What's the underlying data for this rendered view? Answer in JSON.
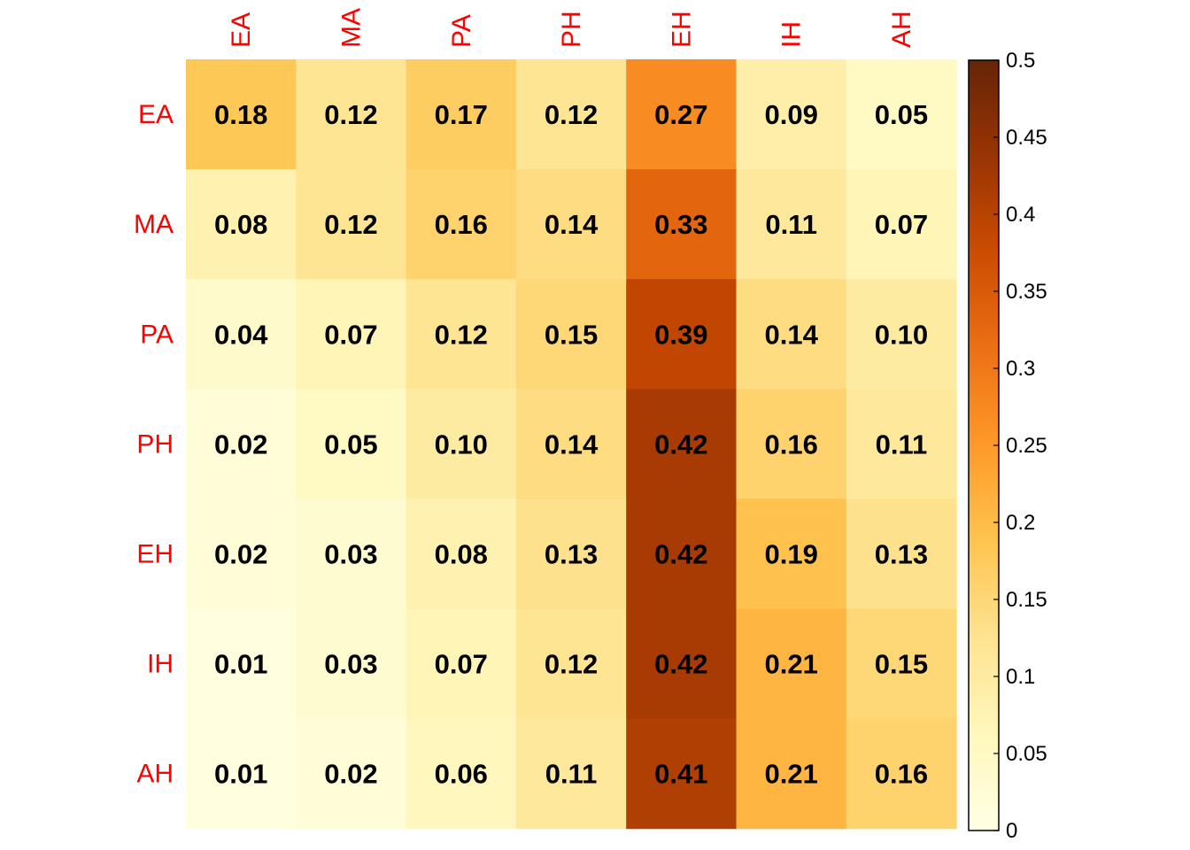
{
  "chart_data": {
    "type": "heatmap",
    "row_labels": [
      "EA",
      "MA",
      "PA",
      "PH",
      "EH",
      "IH",
      "AH"
    ],
    "col_labels": [
      "EA",
      "MA",
      "PA",
      "PH",
      "EH",
      "IH",
      "AH"
    ],
    "values": [
      [
        0.18,
        0.12,
        0.17,
        0.12,
        0.27,
        0.09,
        0.05
      ],
      [
        0.08,
        0.12,
        0.16,
        0.14,
        0.33,
        0.11,
        0.07
      ],
      [
        0.04,
        0.07,
        0.12,
        0.15,
        0.39,
        0.14,
        0.1
      ],
      [
        0.02,
        0.05,
        0.1,
        0.14,
        0.42,
        0.16,
        0.11
      ],
      [
        0.02,
        0.03,
        0.08,
        0.13,
        0.42,
        0.19,
        0.13
      ],
      [
        0.01,
        0.03,
        0.07,
        0.12,
        0.42,
        0.21,
        0.15
      ],
      [
        0.01,
        0.02,
        0.06,
        0.11,
        0.41,
        0.21,
        0.16
      ]
    ],
    "value_labels": [
      [
        "0.18",
        "0.12",
        "0.17",
        "0.12",
        "0.27",
        "0.09",
        "0.05"
      ],
      [
        "0.08",
        "0.12",
        "0.16",
        "0.14",
        "0.33",
        "0.11",
        "0.07"
      ],
      [
        "0.04",
        "0.07",
        "0.12",
        "0.15",
        "0.39",
        "0.14",
        "0.10"
      ],
      [
        "0.02",
        "0.05",
        "0.10",
        "0.14",
        "0.42",
        "0.16",
        "0.11"
      ],
      [
        "0.02",
        "0.03",
        "0.08",
        "0.13",
        "0.42",
        "0.19",
        "0.13"
      ],
      [
        "0.01",
        "0.03",
        "0.07",
        "0.12",
        "0.42",
        "0.21",
        "0.15"
      ],
      [
        "0.01",
        "0.02",
        "0.06",
        "0.11",
        "0.41",
        "0.21",
        "0.16"
      ]
    ],
    "color_range": [
      0,
      0.5
    ],
    "colorbar_ticks": [
      "0",
      "0.05",
      "0.1",
      "0.15",
      "0.2",
      "0.25",
      "0.3",
      "0.35",
      "0.4",
      "0.45",
      "0.5"
    ],
    "colorscale": [
      "#ffffe5",
      "#fff7bc",
      "#fee391",
      "#fec44f",
      "#fe9929",
      "#ec7014",
      "#cc4c02",
      "#993404",
      "#662506"
    ],
    "label_color": "#ff0000",
    "colorbar_position": "right"
  }
}
